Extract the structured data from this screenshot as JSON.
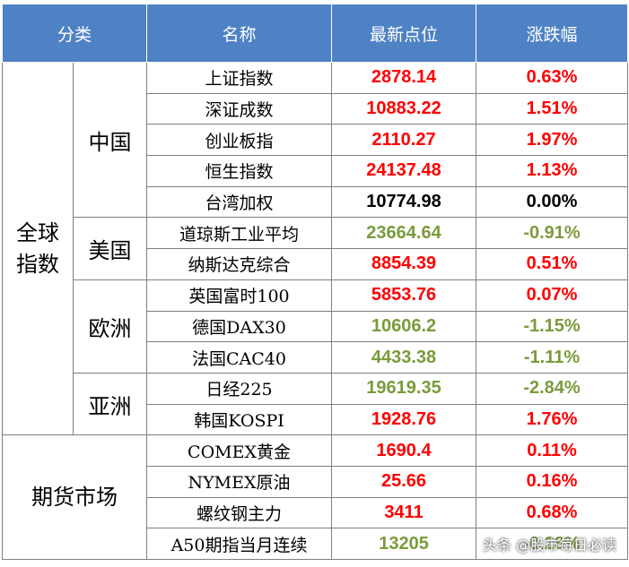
{
  "headers": {
    "category": "分类",
    "name": "名称",
    "latest": "最新点位",
    "change": "涨跌幅"
  },
  "groups": {
    "global_line1": "全球",
    "global_line2": "指数",
    "futures": "期货市场"
  },
  "regions": {
    "china": "中国",
    "usa": "美国",
    "europe": "欧洲",
    "asia": "亚洲"
  },
  "rows": [
    {
      "name": "上证指数",
      "value": "2878.14",
      "change": "0.63%",
      "trend": "up"
    },
    {
      "name": "深证成数",
      "value": "10883.22",
      "change": "1.51%",
      "trend": "up"
    },
    {
      "name": "创业板指",
      "value": "2110.27",
      "change": "1.97%",
      "trend": "up"
    },
    {
      "name": "恒生指数",
      "value": "24137.48",
      "change": "1.13%",
      "trend": "up"
    },
    {
      "name": "台湾加权",
      "value": "10774.98",
      "change": "0.00%",
      "trend": "flat"
    },
    {
      "name": "道琼斯工业平均",
      "value": "23664.64",
      "change": "-0.91%",
      "trend": "down"
    },
    {
      "name": "纳斯达克综合",
      "value": "8854.39",
      "change": "0.51%",
      "trend": "up"
    },
    {
      "name": "英国富时100",
      "value": "5853.76",
      "change": "0.07%",
      "trend": "up"
    },
    {
      "name": "德国DAX30",
      "value": "10606.2",
      "change": "-1.15%",
      "trend": "down"
    },
    {
      "name": "法国CAC40",
      "value": "4433.38",
      "change": "-1.11%",
      "trend": "down"
    },
    {
      "name": "日经225",
      "value": "19619.35",
      "change": "-2.84%",
      "trend": "down"
    },
    {
      "name": "韩国KOSPI",
      "value": "1928.76",
      "change": "1.76%",
      "trend": "up"
    },
    {
      "name": "COMEX黄金",
      "value": "1690.4",
      "change": "0.11%",
      "trend": "up"
    },
    {
      "name": "NYMEX原油",
      "value": "25.66",
      "change": "0.16%",
      "trend": "up"
    },
    {
      "name": "螺纹钢主力",
      "value": "3411",
      "change": "0.68%",
      "trend": "up"
    },
    {
      "name": "A50期指当月连续",
      "value": "13205",
      "change": "-0.28%",
      "trend": "down"
    }
  ],
  "colors": {
    "header_bg": "#4f82c4",
    "up": "#ff0000",
    "down": "#7a9b3c",
    "flat": "#000000"
  },
  "watermark": "头条 @股市每日必读"
}
